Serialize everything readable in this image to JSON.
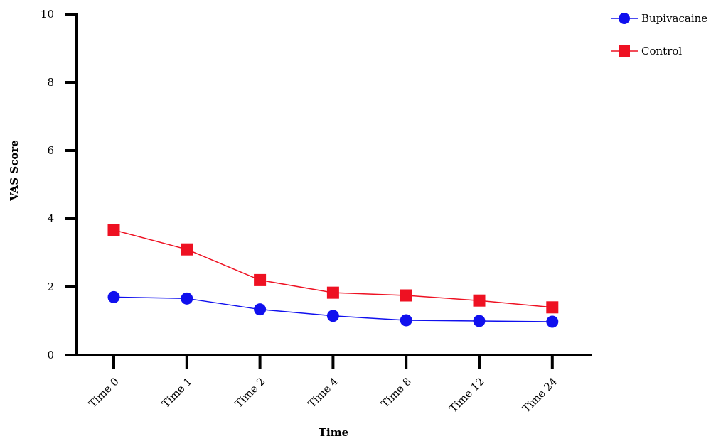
{
  "chart_data": {
    "type": "line",
    "title": "",
    "xlabel": "Time",
    "ylabel": "VAS Score",
    "categories": [
      "Time 0",
      "Time 1",
      "Time 2",
      "Time 4",
      "Time 8",
      "Time 12",
      "Time 24"
    ],
    "ylim": [
      0,
      10
    ],
    "yticks": [
      "0",
      "2",
      "4",
      "6",
      "8",
      "10"
    ],
    "grid": false,
    "legend_position": "top-right",
    "series": [
      {
        "name": "Bupivacaine",
        "marker": "circle",
        "color": "#1010ee",
        "values": [
          1.7,
          1.66,
          1.34,
          1.15,
          1.02,
          1.0,
          0.98
        ]
      },
      {
        "name": "Control",
        "marker": "square",
        "color": "#ee1122",
        "values": [
          3.67,
          3.1,
          2.2,
          1.83,
          1.75,
          1.6,
          1.4
        ]
      }
    ]
  }
}
